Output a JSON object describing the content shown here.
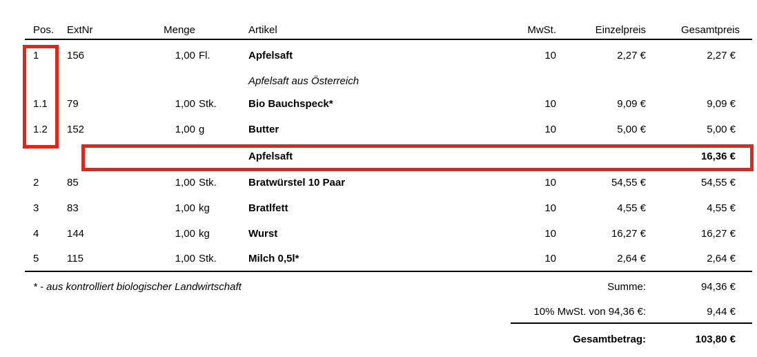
{
  "colors": {
    "highlight": "#e0261c",
    "text": "#000000"
  },
  "table": {
    "columns": [
      "Pos.",
      "ExtNr",
      "Menge",
      "Artikel",
      "MwSt.",
      "Einzelpreis",
      "Gesamtpreis"
    ],
    "rows": [
      {
        "pos": "1",
        "extnr": "156",
        "qty": "1,00",
        "unit": "Fl.",
        "artikel": "Apfelsaft",
        "desc": "Apfelsaft aus Österreich",
        "mwst": "10",
        "einzelpreis": "2,27 €",
        "gesamtpreis": "2,27 €"
      },
      {
        "pos": "1.1",
        "extnr": "79",
        "qty": "1,00",
        "unit": "Stk.",
        "artikel": "Bio Bauchspeck*",
        "mwst": "10",
        "einzelpreis": "9,09 €",
        "gesamtpreis": "9,09 €"
      },
      {
        "pos": "1.2",
        "extnr": "152",
        "qty": "1,00",
        "unit": "g",
        "artikel": "Butter",
        "mwst": "10",
        "einzelpreis": "5,00 €",
        "gesamtpreis": "5,00 €"
      },
      {
        "pos": "2",
        "extnr": "85",
        "qty": "1,00",
        "unit": "Stk.",
        "artikel": "Bratwürstel 10 Paar",
        "mwst": "10",
        "einzelpreis": "54,55 €",
        "gesamtpreis": "54,55 €"
      },
      {
        "pos": "3",
        "extnr": "83",
        "qty": "1,00",
        "unit": "kg",
        "artikel": "Bratlfett",
        "mwst": "10",
        "einzelpreis": "4,55 €",
        "gesamtpreis": "4,55 €"
      },
      {
        "pos": "4",
        "extnr": "144",
        "qty": "1,00",
        "unit": "kg",
        "artikel": "Wurst",
        "mwst": "10",
        "einzelpreis": "16,27 €",
        "gesamtpreis": "16,27 €"
      },
      {
        "pos": "5",
        "extnr": "115",
        "qty": "1,00",
        "unit": "Stk.",
        "artikel": "Milch 0,5l*",
        "mwst": "10",
        "einzelpreis": "2,64 €",
        "gesamtpreis": "2,64 €"
      }
    ],
    "subtotal": {
      "artikel": "Apfelsaft",
      "gesamtpreis": "16,36 €"
    }
  },
  "footnote": "* - aus kontrolliert biologischer Landwirtschaft",
  "totals": {
    "summe_label": "Summe:",
    "summe_value": "94,36 €",
    "mwst_label": "10% MwSt. von 94,36 €:",
    "mwst_value": "9,44 €",
    "gesamt_label": "Gesamtbetrag:",
    "gesamt_value": "103,80 €"
  }
}
